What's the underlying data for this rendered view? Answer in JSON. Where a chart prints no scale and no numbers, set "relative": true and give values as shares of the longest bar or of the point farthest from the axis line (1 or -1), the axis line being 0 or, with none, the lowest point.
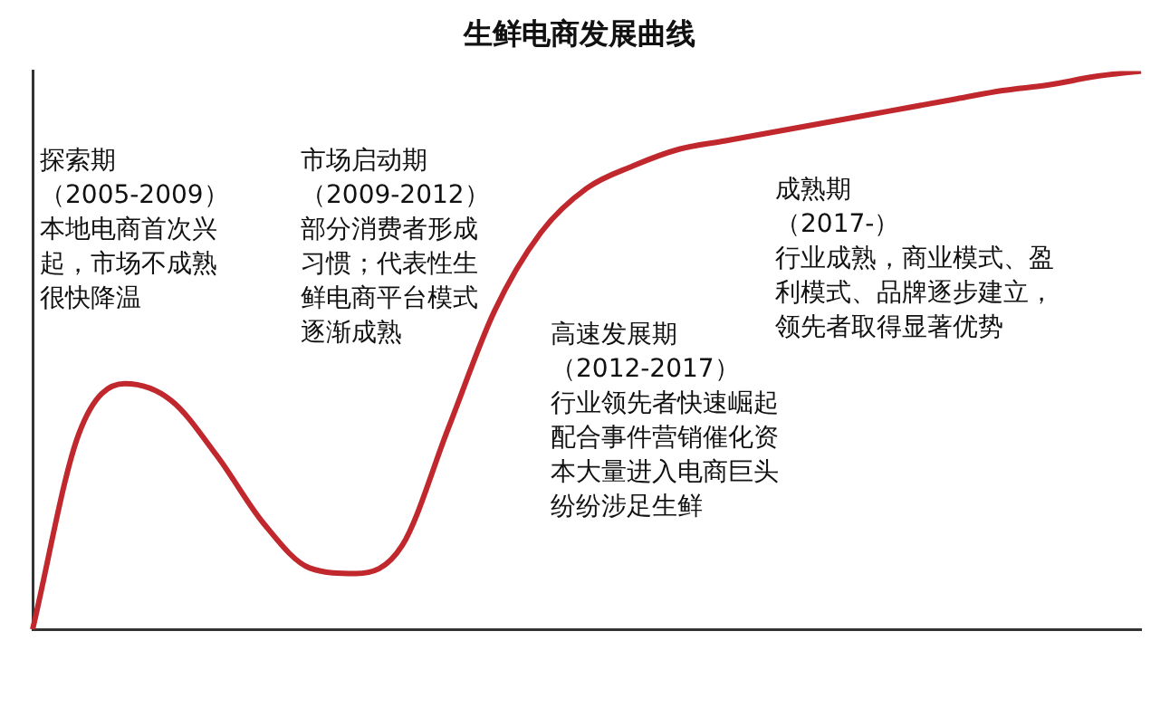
{
  "chart_data": {
    "type": "line",
    "title": "生鲜电商发展曲线",
    "relative": true,
    "grid": false,
    "legend": false,
    "marker": "none",
    "line_style": "solid",
    "categories": [
      null,
      null,
      null,
      null,
      null,
      null,
      null,
      null,
      null,
      null,
      null,
      null,
      null,
      null,
      null,
      null,
      null,
      null,
      null,
      null,
      null,
      null,
      null,
      null,
      null
    ],
    "series": [
      {
        "color": "#c0282d",
        "values": [
          0,
          0.35,
          0.44,
          0.41,
          0.31,
          0.19,
          0.11,
          0.1,
          0.15,
          0.36,
          0.57,
          0.71,
          0.79,
          0.83,
          0.86,
          0.875,
          0.89,
          0.905,
          0.92,
          0.935,
          0.95,
          0.965,
          0.975,
          0.99,
          1
        ]
      }
    ],
    "annotations": [
      "探索期",
      "（2005-2009）",
      "本地电商首次兴起，市场不成熟很快降温",
      "市场启动期",
      "（2009-2012）",
      "部分消费者形成习惯；代表性生鲜电商平台模式逐渐成熟",
      "高速发展期",
      "（2012-2017）",
      "行业领先者快速崛起配合事件营销催化资本大量进入电商巨头纷纷涉足生鲜",
      "成熟期",
      "（2017-）",
      "行业成熟，商业模式、盈利模式、品牌逐步建立，领先者取得显著优势"
    ]
  }
}
